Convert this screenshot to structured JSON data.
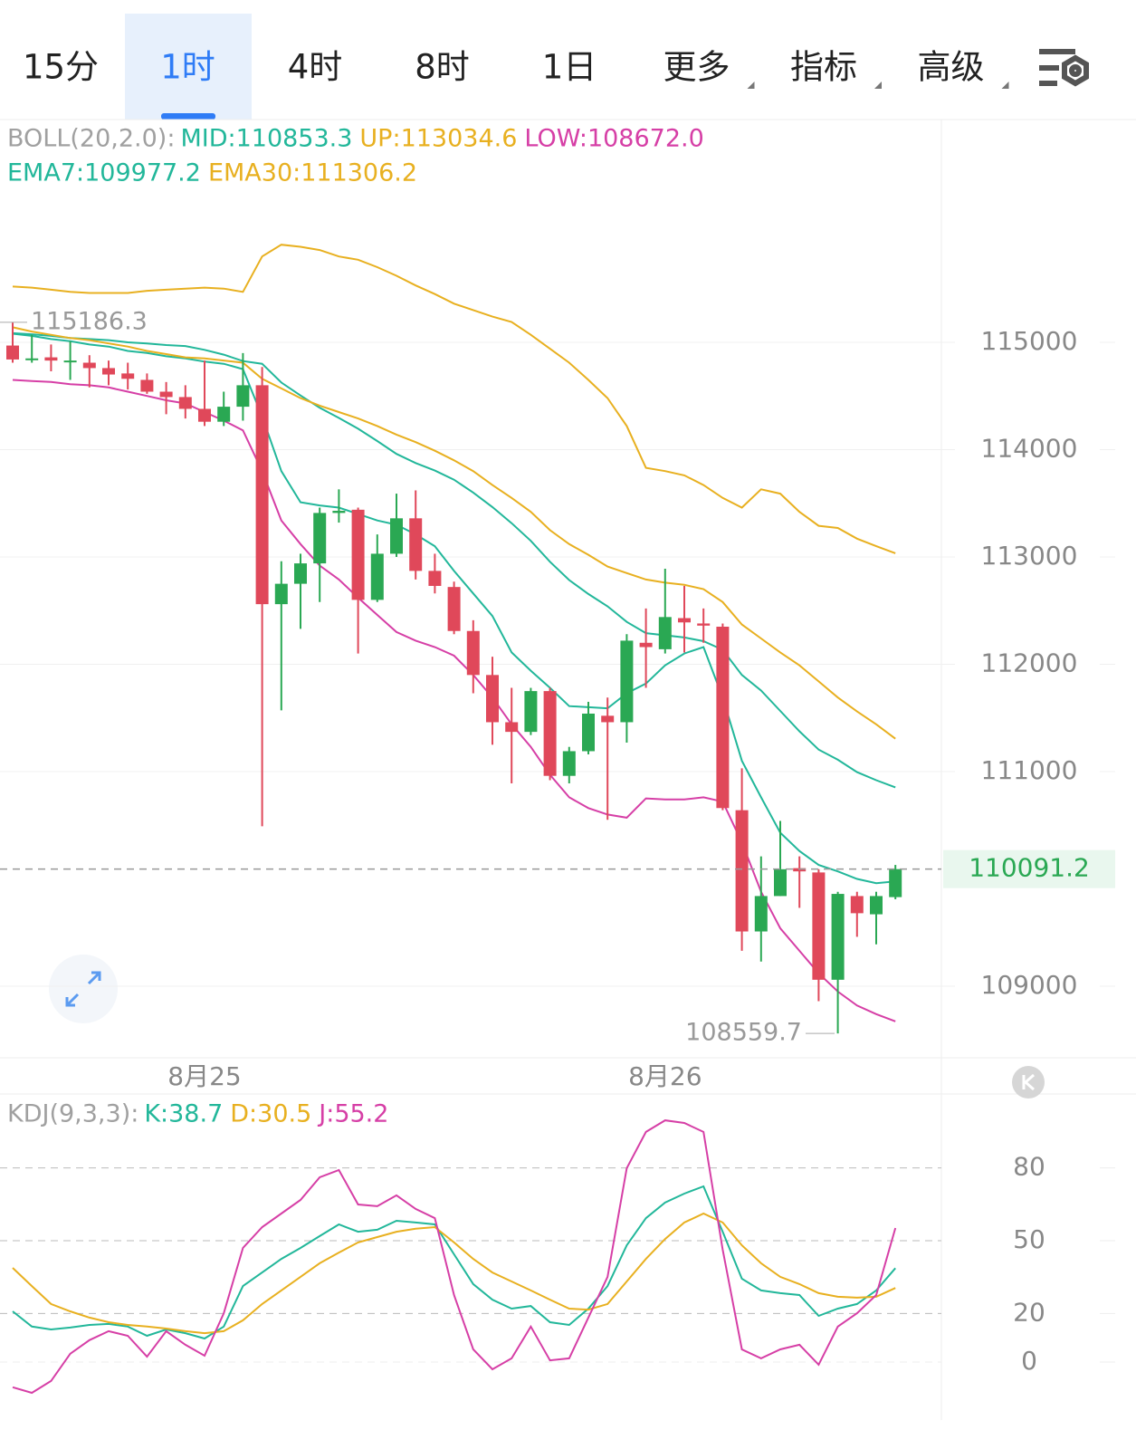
{
  "tabs": {
    "items": [
      "15分",
      "1时",
      "4时",
      "8时",
      "1日",
      "更多",
      "指标",
      "高级"
    ],
    "active": 1,
    "dropdowns": [
      5,
      6,
      7
    ]
  },
  "chart_data": [
    {
      "type": "candlestick",
      "indicator": "BOLL(20,2.0):",
      "categories": [
        null,
        null,
        null,
        null,
        null,
        null,
        null,
        null,
        null,
        null,
        "8月25",
        null,
        null,
        null,
        null,
        null,
        null,
        null,
        null,
        null,
        null,
        null,
        null,
        null,
        null,
        null,
        null,
        null,
        null,
        null,
        null,
        null,
        null,
        null,
        "8月26",
        null,
        null,
        null,
        null,
        null,
        null,
        null,
        null,
        null,
        null,
        null,
        null
      ],
      "open": [
        114970,
        114840,
        114860,
        114820,
        114810,
        114760,
        114710,
        114650,
        114540,
        114490,
        114380,
        114260,
        114400,
        114600,
        112560,
        112750,
        112940,
        113410,
        113440,
        112600,
        113030,
        113360,
        112870,
        112720,
        112310,
        111900,
        111460,
        111370,
        111750,
        110960,
        111190,
        111520,
        111460,
        112200,
        112140,
        112430,
        112380,
        112350,
        110640,
        109510,
        109840,
        110100,
        110060,
        109060,
        109840,
        109670,
        109830
      ],
      "high": [
        115186.3,
        115070,
        114980,
        115010,
        114880,
        114830,
        114810,
        114710,
        114630,
        114600,
        114830,
        114540,
        114900,
        114770,
        112960,
        113030,
        113460,
        113630,
        113460,
        113210,
        113590,
        113620,
        113030,
        112770,
        112410,
        112070,
        111780,
        111780,
        111780,
        111230,
        111650,
        111690,
        112280,
        112520,
        112890,
        112730,
        112520,
        112380,
        111030,
        110210,
        110540,
        110210,
        110090,
        109880,
        109880,
        109880,
        110130
      ],
      "low": [
        114810,
        114810,
        114730,
        114650,
        114580,
        114600,
        114560,
        114520,
        114330,
        114290,
        114220,
        114220,
        114270,
        110490,
        111570,
        112330,
        112580,
        113320,
        112100,
        112580,
        113000,
        112790,
        112660,
        112280,
        111730,
        111250,
        110890,
        111340,
        110920,
        110890,
        111160,
        110550,
        111270,
        111780,
        112100,
        112110,
        112200,
        110640,
        109330,
        109230,
        109840,
        109730,
        108860,
        108559.7,
        109460,
        109390,
        109810
      ],
      "close": [
        114840,
        114850,
        114830,
        114830,
        114760,
        114700,
        114660,
        114540,
        114490,
        114380,
        114260,
        114400,
        114600,
        112560,
        112750,
        112940,
        113410,
        113430,
        112600,
        113030,
        113360,
        112870,
        112730,
        112310,
        111900,
        111460,
        111370,
        111750,
        110960,
        111190,
        111540,
        111460,
        112220,
        112160,
        112440,
        112390,
        112360,
        110660,
        109510,
        109840,
        110090,
        110070,
        109060,
        109860,
        109680,
        109840,
        110091.2
      ],
      "up_color": "#2aa853",
      "down_color": "#e0485a",
      "series": [
        {
          "name": "MID:110853.3",
          "color": "#22b79a",
          "values": [
            115085,
            115075,
            115060,
            115040,
            115030,
            115020,
            115000,
            114990,
            114975,
            114965,
            114930,
            114885,
            114825,
            114800,
            114625,
            114505,
            114390,
            114295,
            114195,
            114080,
            113960,
            113875,
            113805,
            113720,
            113600,
            113465,
            113315,
            113150,
            112955,
            112785,
            112655,
            112540,
            112395,
            112290,
            112270,
            112250,
            112215,
            112135,
            111900,
            111755,
            111565,
            111375,
            111205,
            111110,
            110995,
            110920,
            110853.3
          ]
        },
        {
          "name": "UP:113034.6",
          "color": "#e8b020",
          "values": [
            115520,
            115510,
            115490,
            115470,
            115460,
            115460,
            115460,
            115480,
            115490,
            115500,
            115510,
            115500,
            115470,
            115800,
            115910,
            115890,
            115860,
            115800,
            115770,
            115700,
            115620,
            115530,
            115450,
            115360,
            115300,
            115240,
            115190,
            115070,
            114940,
            114810,
            114650,
            114480,
            114220,
            113830,
            113800,
            113760,
            113670,
            113550,
            113460,
            113630,
            113590,
            113420,
            113290,
            113270,
            113170,
            113100,
            113034.6
          ]
        },
        {
          "name": "LOW:108672.0",
          "color": "#d63fa6",
          "values": [
            114650,
            114640,
            114630,
            114610,
            114600,
            114580,
            114540,
            114500,
            114460,
            114430,
            114350,
            114270,
            114180,
            113800,
            113340,
            113120,
            112920,
            112790,
            112620,
            112460,
            112300,
            112220,
            112160,
            112080,
            111900,
            111690,
            111440,
            111230,
            110970,
            110760,
            110660,
            110600,
            110570,
            110750,
            110740,
            110740,
            110760,
            110720,
            110340,
            109880,
            109540,
            109330,
            109120,
            108950,
            108820,
            108740,
            108672.0
          ]
        },
        {
          "name": "EMA7:109977.2",
          "color": "#22b79a",
          "values": [
            115080,
            115060,
            115030,
            115010,
            114980,
            114960,
            114920,
            114900,
            114870,
            114850,
            114820,
            114800,
            114750,
            114310,
            113800,
            113510,
            113480,
            113460,
            113400,
            113340,
            113300,
            113210,
            113100,
            112870,
            112660,
            112450,
            112110,
            111940,
            111780,
            111610,
            111600,
            111590,
            111730,
            111820,
            111990,
            112100,
            112160,
            111690,
            111100,
            110760,
            110430,
            110260,
            110130,
            110070,
            110000,
            109960,
            109977.2
          ]
        },
        {
          "name": "EMA30:111306.2",
          "color": "#e8b020",
          "values": [
            115140,
            115100,
            115070,
            115040,
            115020,
            114990,
            114960,
            114920,
            114890,
            114860,
            114850,
            114830,
            114810,
            114660,
            114570,
            114480,
            114410,
            114350,
            114290,
            114220,
            114140,
            114070,
            113990,
            113900,
            113800,
            113670,
            113550,
            113420,
            113250,
            113120,
            113020,
            112910,
            112850,
            112790,
            112760,
            112740,
            112700,
            112580,
            112370,
            112240,
            112110,
            111990,
            111840,
            111690,
            111560,
            111440,
            111306.2
          ]
        }
      ],
      "ylim": [
        108333,
        117076
      ],
      "yticks": [
        109000,
        111000,
        112000,
        113000,
        114000,
        115000
      ],
      "grid": true,
      "high_marker": 115186.3,
      "low_marker": 108559.7,
      "last_price": 110091.2
    },
    {
      "type": "line",
      "indicator": "KDJ(9,3,3):",
      "series": [
        {
          "name": "K:38.7",
          "color": "#22b79a",
          "values": [
            20.9,
            14.6,
            13.4,
            14.2,
            15.3,
            15.7,
            14.6,
            10.8,
            13.4,
            11.9,
            9.7,
            14.6,
            31.3,
            36.9,
            42.5,
            47.0,
            51.9,
            56.7,
            53.7,
            54.5,
            58.2,
            57.5,
            56.7,
            44.4,
            32.1,
            25.7,
            22.0,
            23.1,
            16.4,
            15.3,
            22.0,
            31.3,
            48.1,
            59.3,
            65.7,
            69.4,
            72.4,
            53.7,
            34.3,
            29.5,
            28.4,
            27.6,
            19.0,
            22.0,
            23.9,
            29.5,
            38.7
          ]
        },
        {
          "name": "D:30.5",
          "color": "#e8b020",
          "values": [
            38.8,
            31.3,
            23.9,
            20.9,
            18.3,
            16.4,
            15.3,
            14.6,
            13.8,
            12.7,
            11.9,
            12.7,
            17.2,
            23.9,
            29.5,
            35.1,
            40.7,
            45.1,
            49.3,
            51.5,
            53.7,
            54.9,
            55.6,
            49.3,
            42.5,
            36.9,
            33.2,
            29.5,
            25.7,
            22.0,
            21.6,
            23.9,
            33.2,
            42.5,
            50.7,
            57.5,
            61.2,
            57.5,
            48.1,
            40.7,
            35.1,
            32.1,
            28.4,
            26.9,
            26.5,
            26.9,
            30.5
          ]
        },
        {
          "name": "J:55.2",
          "color": "#d63fa6",
          "values": [
            -10.4,
            -12.7,
            -7.8,
            3.4,
            9.0,
            12.7,
            10.8,
            2.2,
            12.7,
            7.1,
            2.6,
            20.1,
            47.0,
            55.6,
            61.2,
            66.8,
            76.1,
            79.1,
            64.9,
            64.2,
            68.7,
            63.1,
            59.3,
            27.6,
            5.2,
            -3.0,
            1.5,
            14.6,
            0.7,
            1.5,
            18.3,
            35.1,
            79.9,
            94.8,
            99.6,
            98.5,
            94.8,
            46.3,
            5.2,
            1.5,
            5.2,
            7.1,
            -1.1,
            14.6,
            20.1,
            27.6,
            55.2
          ]
        }
      ],
      "ylim": [
        -23.9,
        109.7
      ],
      "yticks": [
        0,
        20,
        50,
        80
      ],
      "grid": true
    }
  ]
}
